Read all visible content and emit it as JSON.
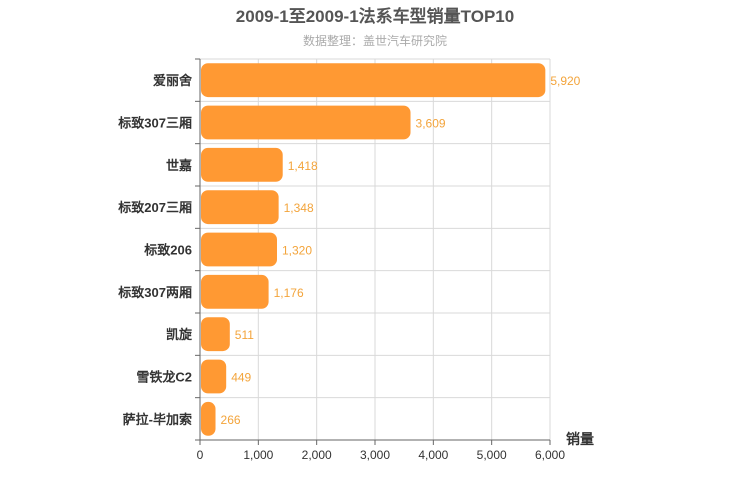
{
  "chart_data": {
    "type": "bar",
    "orientation": "horizontal",
    "title": "2009-1至2009-1法系车型销量TOP10",
    "subtitle": "数据整理：盖世汽车研究院",
    "xlabel": "销量",
    "ylabel": "",
    "categories": [
      "爱丽舍",
      "标致307三厢",
      "世嘉",
      "标致207三厢",
      "标致206",
      "标致307两厢",
      "凯旋",
      "雪铁龙C2",
      "萨拉-毕加索"
    ],
    "values": [
      5920,
      3609,
      1418,
      1348,
      1320,
      1176,
      511,
      449,
      266
    ],
    "value_labels": [
      "5,920",
      "3,609",
      "1,418",
      "1,348",
      "1,320",
      "1,176",
      "511",
      "449",
      "266"
    ],
    "xlim": [
      0,
      6000
    ],
    "ticks": [
      0,
      1000,
      2000,
      3000,
      4000,
      5000,
      6000
    ],
    "tick_labels": [
      "0",
      "1,000",
      "2,000",
      "3,000",
      "4,000",
      "5,000",
      "6,000"
    ],
    "grid": true,
    "bar_color": "#ff9933",
    "label_color": "#f3a43b"
  }
}
